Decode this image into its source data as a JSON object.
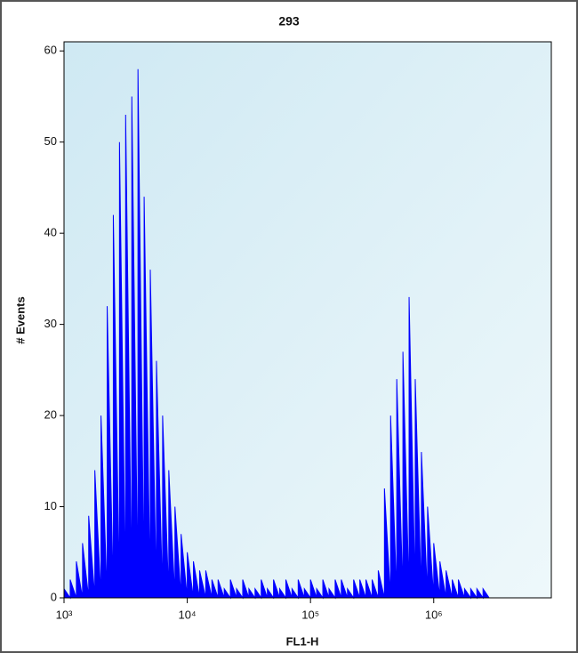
{
  "chart_data": {
    "type": "area",
    "title": "293",
    "x_label": "FL1-H",
    "y_label": "# Events",
    "xscale": "log",
    "color": "#0000ff",
    "xlim": [
      1000,
      9000000
    ],
    "ylim": [
      0,
      61
    ],
    "xticks": [
      {
        "value": 1000,
        "label": "10³"
      },
      {
        "value": 10000,
        "label": "10⁴"
      },
      {
        "value": 100000,
        "label": "10⁵"
      },
      {
        "value": 1000000,
        "label": "10⁶"
      }
    ],
    "yticks": [
      0,
      10,
      20,
      30,
      40,
      50,
      60
    ],
    "x": [
      1000,
      1122,
      1259,
      1413,
      1585,
      1778,
      1995,
      2239,
      2512,
      2818,
      3162,
      3548,
      3981,
      4467,
      5012,
      5623,
      6310,
      7079,
      7943,
      8913,
      10000,
      11220,
      12589,
      14125,
      15849,
      17783,
      19953,
      22387,
      25119,
      28184,
      31623,
      35481,
      39811,
      44668,
      50119,
      56234,
      63096,
      70795,
      79433,
      89125,
      100000,
      112202,
      125893,
      141254,
      158489,
      177828,
      199526,
      223872,
      251189,
      281838,
      316228,
      354813,
      398107,
      446684,
      501187,
      562341,
      630957,
      707946,
      794328,
      891251,
      1000000,
      1122018,
      1258925,
      1412538,
      1584893,
      1778279,
      1995262,
      2238721,
      2511886,
      2818383,
      3162278,
      3548134,
      3981072
    ],
    "values": [
      1,
      2,
      4,
      6,
      9,
      14,
      20,
      32,
      42,
      50,
      53,
      55,
      58,
      44,
      36,
      26,
      20,
      14,
      10,
      7,
      5,
      4,
      3,
      3,
      2,
      2,
      1,
      2,
      1,
      2,
      1,
      1,
      2,
      1,
      2,
      1,
      2,
      1,
      2,
      1,
      2,
      1,
      2,
      1,
      2,
      2,
      1,
      2,
      2,
      2,
      2,
      3,
      12,
      20,
      24,
      27,
      33,
      24,
      16,
      10,
      6,
      4,
      3,
      2,
      2,
      1,
      1,
      1,
      1,
      0,
      0,
      0,
      0
    ]
  }
}
